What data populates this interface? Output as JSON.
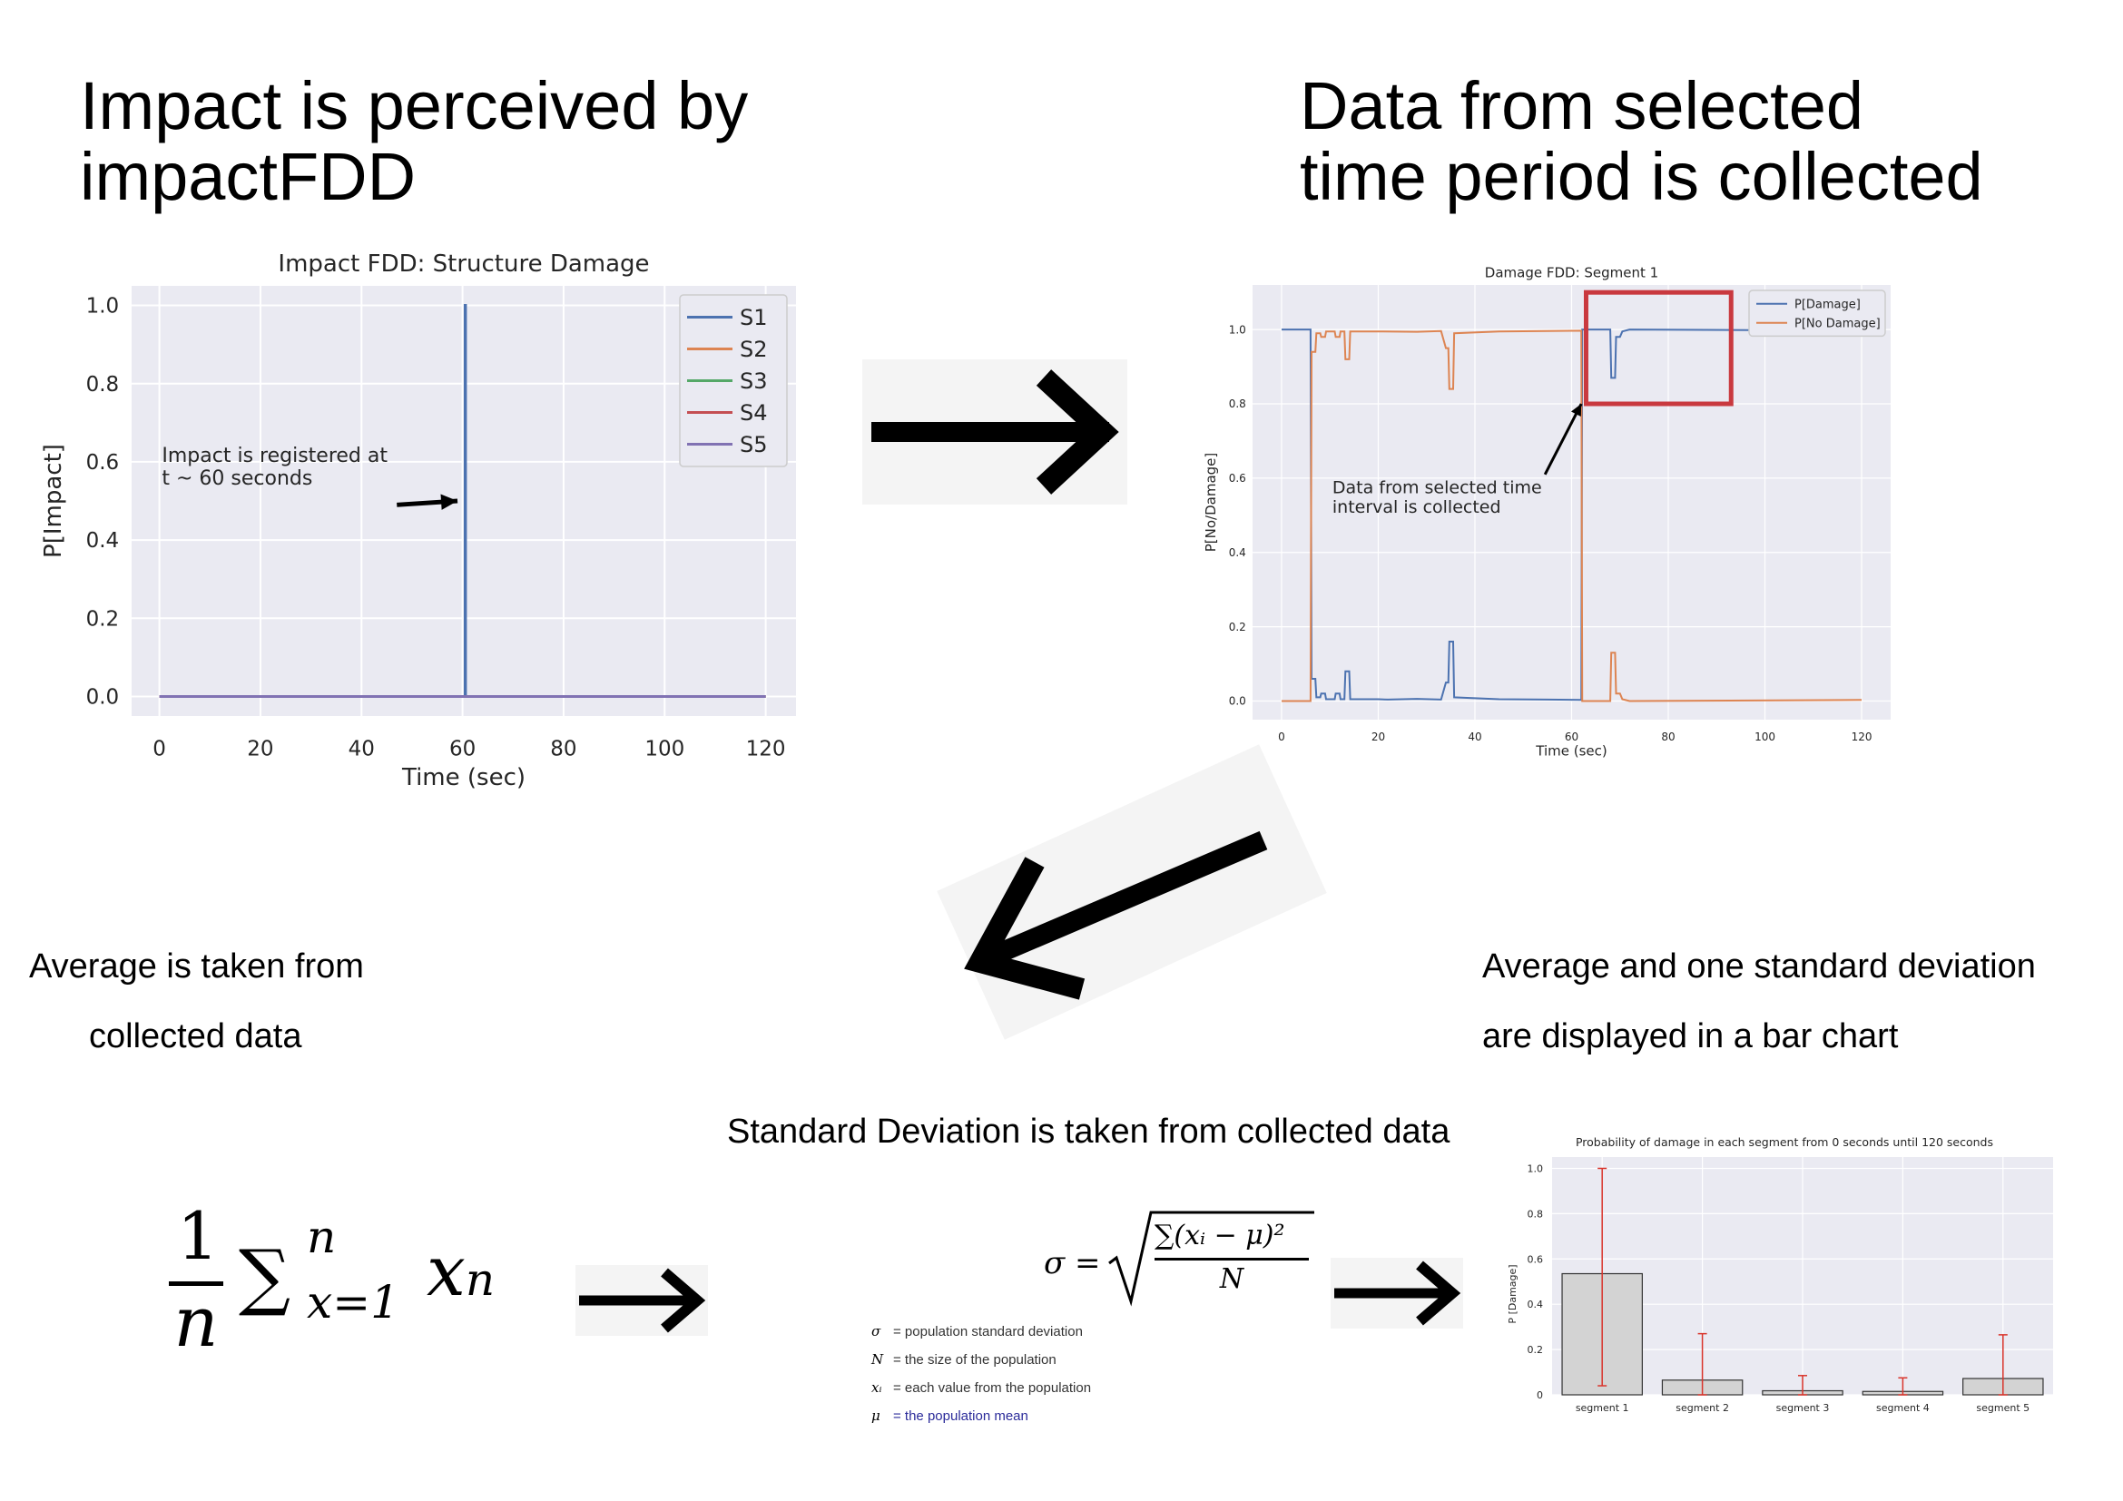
{
  "titles": {
    "left": [
      "Impact is perceived by",
      "impactFDD"
    ],
    "right": [
      "Data from selected",
      "time period is collected"
    ]
  },
  "captions": {
    "average": [
      "Average is taken from",
      "collected data"
    ],
    "bar": [
      "Average and one standard deviation",
      "are displayed in a bar chart"
    ],
    "std": "Standard Deviation is taken from collected data"
  },
  "formulas": {
    "mean": {
      "numerator": "1",
      "denominator": "n",
      "sum": "∑",
      "upper": "n",
      "lower": "x=1",
      "term": "x",
      "term_sub": "n"
    },
    "std": {
      "lhs": "σ =",
      "numerator": "∑(xᵢ − μ)²",
      "denominator": "N"
    },
    "legend": [
      {
        "sym": "σ",
        "desc": "= population standard deviation",
        "color": "#333333"
      },
      {
        "sym": "N",
        "desc": "= the size of the population",
        "color": "#333333"
      },
      {
        "sym": "xᵢ",
        "desc": "= each value from the population",
        "color": "#333333"
      },
      {
        "sym": "μ",
        "desc": "= the population mean",
        "color": "#2b2b9a"
      }
    ]
  },
  "chart_data": [
    {
      "type": "line",
      "title": "Impact FDD: Structure Damage",
      "xlabel": "Time (sec)",
      "ylabel": "P[Impact]",
      "xlim": [
        -5.5,
        126
      ],
      "ylim": [
        -0.05,
        1.05
      ],
      "xticks": [
        0,
        20,
        40,
        60,
        80,
        100,
        120
      ],
      "yticks": [
        "0.0",
        "0.2",
        "0.4",
        "0.6",
        "0.8",
        "1.0"
      ],
      "grid": true,
      "legend_position": "top-right",
      "series": [
        {
          "name": "S1",
          "color": "#4c72b0",
          "points": [
            [
              0,
              0
            ],
            [
              60.5,
              0
            ],
            [
              60.5,
              1.0
            ],
            [
              60.6,
              1.0
            ],
            [
              60.6,
              0
            ],
            [
              120,
              0
            ]
          ]
        },
        {
          "name": "S2",
          "color": "#dd8452",
          "points": [
            [
              0,
              0
            ],
            [
              120,
              0
            ]
          ]
        },
        {
          "name": "S3",
          "color": "#55a868",
          "points": [
            [
              0,
              0
            ],
            [
              120,
              0
            ]
          ]
        },
        {
          "name": "S4",
          "color": "#c44e52",
          "points": [
            [
              0,
              0
            ],
            [
              120,
              0
            ]
          ]
        },
        {
          "name": "S5",
          "color": "#8172b3",
          "points": [
            [
              0,
              0
            ],
            [
              120,
              0
            ]
          ]
        }
      ],
      "annotation": {
        "text": [
          "Impact is registered at",
          " t ~ 60 seconds"
        ],
        "text_at": [
          0.5,
          0.6
        ],
        "arrow_from": [
          47,
          0.49
        ],
        "arrow_to": [
          59,
          0.5
        ]
      }
    },
    {
      "type": "line",
      "title": "Damage FDD: Segment 1",
      "xlabel": "Time (sec)",
      "ylabel": "P[No/Damage]",
      "xlim": [
        -6,
        126
      ],
      "ylim": [
        -0.05,
        1.12
      ],
      "xticks": [
        0,
        20,
        40,
        60,
        80,
        100,
        120
      ],
      "yticks": [
        "0.0",
        "0.2",
        "0.4",
        "0.6",
        "0.8",
        "1.0"
      ],
      "grid": true,
      "legend_position": "top-right",
      "series": [
        {
          "name": "P[Damage]",
          "color": "#4c72b0",
          "points": [
            [
              0,
              1.0
            ],
            [
              6,
              1.0
            ],
            [
              6.2,
              0.06
            ],
            [
              7,
              0.06
            ],
            [
              7.2,
              0.01
            ],
            [
              8,
              0.01
            ],
            [
              8.2,
              0.02
            ],
            [
              9,
              0.02
            ],
            [
              9.2,
              0.005
            ],
            [
              11,
              0.005
            ],
            [
              11.2,
              0.02
            ],
            [
              12,
              0.02
            ],
            [
              12.2,
              0.005
            ],
            [
              13,
              0.005
            ],
            [
              13.2,
              0.08
            ],
            [
              14,
              0.08
            ],
            [
              14.2,
              0.005
            ],
            [
              20,
              0.005
            ],
            [
              22,
              0.004
            ],
            [
              28,
              0.006
            ],
            [
              33,
              0.004
            ],
            [
              34,
              0.05
            ],
            [
              34.5,
              0.05
            ],
            [
              34.7,
              0.16
            ],
            [
              35.5,
              0.16
            ],
            [
              35.7,
              0.01
            ],
            [
              45,
              0.005
            ],
            [
              55,
              0.004
            ],
            [
              62,
              0.003
            ],
            [
              62.2,
              1.0
            ],
            [
              68,
              1.0
            ],
            [
              68.2,
              0.87
            ],
            [
              69,
              0.87
            ],
            [
              69.2,
              0.98
            ],
            [
              70,
              0.98
            ],
            [
              70.5,
              0.995
            ],
            [
              72,
              1.0
            ],
            [
              120,
              0.997
            ]
          ]
        },
        {
          "name": "P[No Damage]",
          "color": "#dd8452",
          "points": [
            [
              0,
              0
            ],
            [
              6,
              0
            ],
            [
              6.2,
              0.94
            ],
            [
              7,
              0.94
            ],
            [
              7.2,
              0.99
            ],
            [
              8,
              0.99
            ],
            [
              8.2,
              0.98
            ],
            [
              9,
              0.98
            ],
            [
              9.2,
              0.995
            ],
            [
              11,
              0.995
            ],
            [
              11.2,
              0.98
            ],
            [
              12,
              0.98
            ],
            [
              12.2,
              0.995
            ],
            [
              13,
              0.995
            ],
            [
              13.2,
              0.92
            ],
            [
              14,
              0.92
            ],
            [
              14.2,
              0.995
            ],
            [
              20,
              0.995
            ],
            [
              28,
              0.994
            ],
            [
              33,
              0.996
            ],
            [
              34,
              0.95
            ],
            [
              34.5,
              0.95
            ],
            [
              34.7,
              0.84
            ],
            [
              35.5,
              0.84
            ],
            [
              35.7,
              0.99
            ],
            [
              45,
              0.995
            ],
            [
              55,
              0.996
            ],
            [
              62,
              0.997
            ],
            [
              62.2,
              0.0
            ],
            [
              68,
              0.0
            ],
            [
              68.2,
              0.13
            ],
            [
              69,
              0.13
            ],
            [
              69.2,
              0.02
            ],
            [
              70,
              0.02
            ],
            [
              70.5,
              0.005
            ],
            [
              72,
              0.0
            ],
            [
              120,
              0.003
            ]
          ]
        }
      ],
      "highlight_box": {
        "x": [
          63,
          93
        ],
        "y": [
          0.8,
          1.1
        ],
        "color": "#c9393f"
      },
      "annotation": {
        "text": [
          "Data from selected time",
          " interval is collected"
        ],
        "text_at": [
          10.5,
          0.56
        ],
        "arrow_from": [
          54.5,
          0.61
        ],
        "arrow_to": [
          62,
          0.8
        ]
      }
    },
    {
      "type": "bar",
      "title": "Probability of damage in each segment from 0 seconds until 120 seconds",
      "xlabel": "",
      "ylabel": "P [Damage]",
      "categories": [
        "segment 1",
        "segment 2",
        "segment 3",
        "segment 4",
        "segment 5"
      ],
      "values": [
        0.535,
        0.065,
        0.018,
        0.015,
        0.072
      ],
      "error_low": [
        0.04,
        0.0,
        0.0,
        0.0,
        0.0
      ],
      "error_high": [
        1.0,
        0.27,
        0.085,
        0.075,
        0.265
      ],
      "ylim": [
        0,
        1.05
      ],
      "yticks": [
        "0",
        "0.2",
        "0.4",
        "0.6",
        "0.8",
        "1.0"
      ],
      "grid": true,
      "bar_color": "#d3d3d3",
      "error_color": "#d9342b"
    }
  ]
}
